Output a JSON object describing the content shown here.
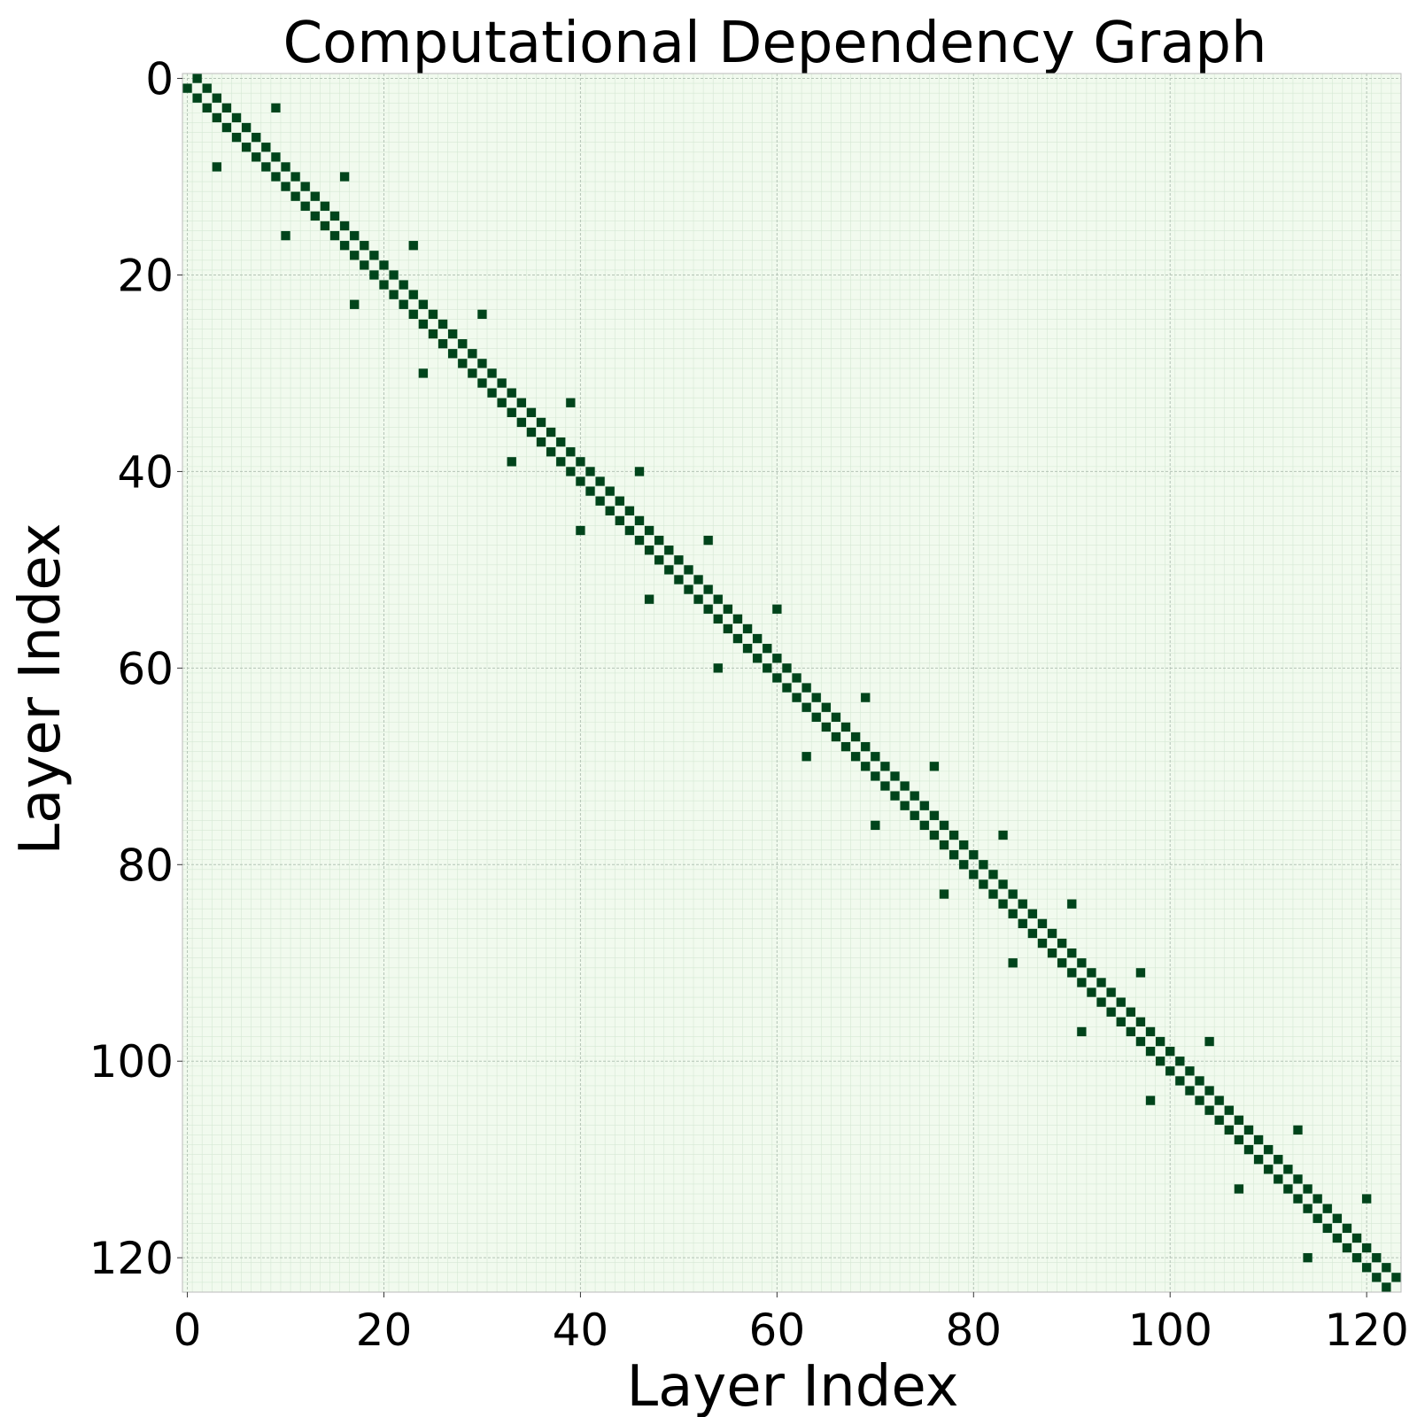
{
  "chart_data": {
    "type": "heatmap",
    "title": "Computational Dependency Graph",
    "xlabel": "Layer Index",
    "ylabel": "Layer Index",
    "size": 124,
    "xlim": [
      0,
      124
    ],
    "ylim": [
      0,
      124
    ],
    "x_ticks": [
      0,
      20,
      40,
      60,
      80,
      100,
      120
    ],
    "y_ticks": [
      0,
      20,
      40,
      60,
      80,
      100,
      120
    ],
    "grid": true,
    "colors": {
      "background": "#f1faee",
      "cell": "#00441b",
      "minor_grid": "#d5e8d4",
      "major_grid": "#b4c4b6",
      "frame": "#bbbbbb"
    },
    "diagonal_pattern": "cells (i, i-1) and (i, i+1) filled for every row i",
    "extra_edges": [
      [
        3,
        9
      ],
      [
        9,
        3
      ],
      [
        10,
        16
      ],
      [
        16,
        10
      ],
      [
        17,
        23
      ],
      [
        23,
        17
      ],
      [
        24,
        30
      ],
      [
        30,
        24
      ],
      [
        33,
        39
      ],
      [
        39,
        33
      ],
      [
        40,
        46
      ],
      [
        46,
        40
      ],
      [
        47,
        53
      ],
      [
        53,
        47
      ],
      [
        54,
        60
      ],
      [
        60,
        54
      ],
      [
        63,
        69
      ],
      [
        69,
        63
      ],
      [
        70,
        76
      ],
      [
        76,
        70
      ],
      [
        77,
        83
      ],
      [
        83,
        77
      ],
      [
        84,
        90
      ],
      [
        90,
        84
      ],
      [
        91,
        97
      ],
      [
        97,
        91
      ],
      [
        98,
        104
      ],
      [
        104,
        98
      ],
      [
        107,
        113
      ],
      [
        113,
        107
      ],
      [
        114,
        120
      ],
      [
        120,
        114
      ]
    ]
  }
}
